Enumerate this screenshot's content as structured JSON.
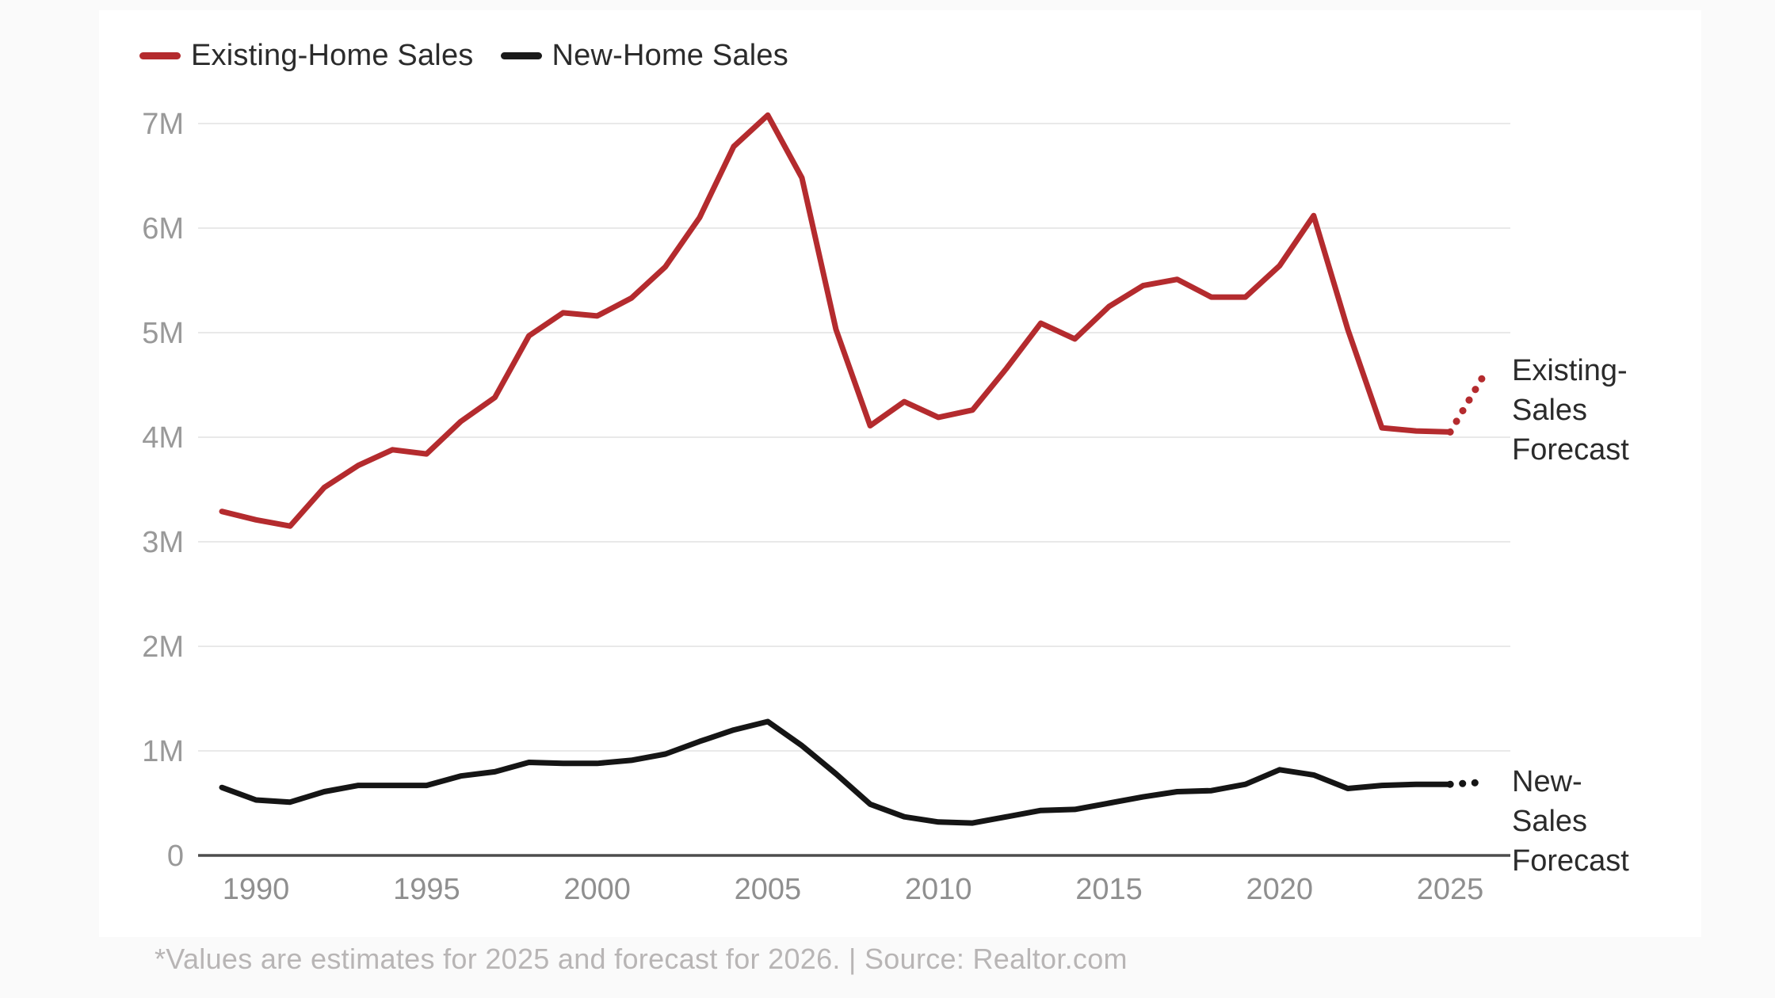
{
  "page": {
    "background_color": "#fafafa",
    "card_background_color": "#ffffff"
  },
  "legend": {
    "items": [
      {
        "label": "Existing-Home Sales",
        "color": "#b42b2e"
      },
      {
        "label": "New-Home Sales",
        "color": "#1a1a1a"
      }
    ]
  },
  "annotations": [
    {
      "id": "existing-sales-forecast",
      "lines": [
        "Existing-",
        "Sales",
        "Forecast"
      ]
    },
    {
      "id": "new-sales-forecast",
      "lines": [
        "New-",
        "Sales",
        "Forecast"
      ]
    }
  ],
  "footer": {
    "text": "*Values are estimates for 2025 and forecast for 2026. | Source: Realtor.com"
  },
  "chart_data": {
    "type": "line",
    "title": "",
    "xlabel": "",
    "ylabel": "",
    "unit": "millions of home sales per year",
    "x": [
      1989,
      1990,
      1991,
      1992,
      1993,
      1994,
      1995,
      1996,
      1997,
      1998,
      1999,
      2000,
      2001,
      2002,
      2003,
      2004,
      2005,
      2006,
      2007,
      2008,
      2009,
      2010,
      2011,
      2012,
      2013,
      2014,
      2015,
      2016,
      2017,
      2018,
      2019,
      2020,
      2021,
      2022,
      2023,
      2024,
      2025
    ],
    "series": [
      {
        "name": "Existing-Home Sales",
        "color": "#b42b2e",
        "values": [
          3.29,
          3.21,
          3.15,
          3.52,
          3.73,
          3.88,
          3.84,
          4.15,
          4.38,
          4.97,
          5.19,
          5.16,
          5.33,
          5.63,
          6.1,
          6.78,
          7.08,
          6.48,
          5.03,
          4.11,
          4.34,
          4.19,
          4.26,
          4.66,
          5.09,
          4.94,
          5.25,
          5.45,
          5.51,
          5.34,
          5.34,
          5.64,
          6.12,
          5.03,
          4.09,
          4.06,
          4.05
        ]
      },
      {
        "name": "New-Home Sales",
        "color": "#151515",
        "values": [
          0.65,
          0.53,
          0.51,
          0.61,
          0.67,
          0.67,
          0.67,
          0.76,
          0.8,
          0.89,
          0.88,
          0.88,
          0.91,
          0.97,
          1.09,
          1.2,
          1.28,
          1.05,
          0.78,
          0.49,
          0.37,
          0.32,
          0.31,
          0.37,
          0.43,
          0.44,
          0.5,
          0.56,
          0.61,
          0.62,
          0.68,
          0.82,
          0.77,
          0.64,
          0.67,
          0.68,
          0.68
        ]
      }
    ],
    "forecasts": [
      {
        "series": "Existing-Home Sales",
        "from_year": 2025,
        "from_value": 4.05,
        "to_year": 2026,
        "to_value": 4.6,
        "style": "dotted"
      },
      {
        "series": "New-Home Sales",
        "from_year": 2025,
        "from_value": 0.68,
        "to_year": 2026,
        "to_value": 0.7,
        "style": "dotted"
      }
    ],
    "x_ticks": [
      1990,
      1995,
      2000,
      2005,
      2010,
      2015,
      2020,
      2025
    ],
    "y_ticks": [
      {
        "value": 0,
        "label": "0"
      },
      {
        "value": 1,
        "label": "1M"
      },
      {
        "value": 2,
        "label": "2M"
      },
      {
        "value": 3,
        "label": "3M"
      },
      {
        "value": 4,
        "label": "4M"
      },
      {
        "value": 5,
        "label": "5M"
      },
      {
        "value": 6,
        "label": "6M"
      },
      {
        "value": 7,
        "label": "7M"
      }
    ],
    "ylim": [
      0,
      7.4
    ],
    "xlim": [
      1989,
      2026.5
    ],
    "grid": true,
    "grid_color": "#e9e9e9",
    "axis_color": "#4d4d4d",
    "legend_position": "top-left"
  }
}
